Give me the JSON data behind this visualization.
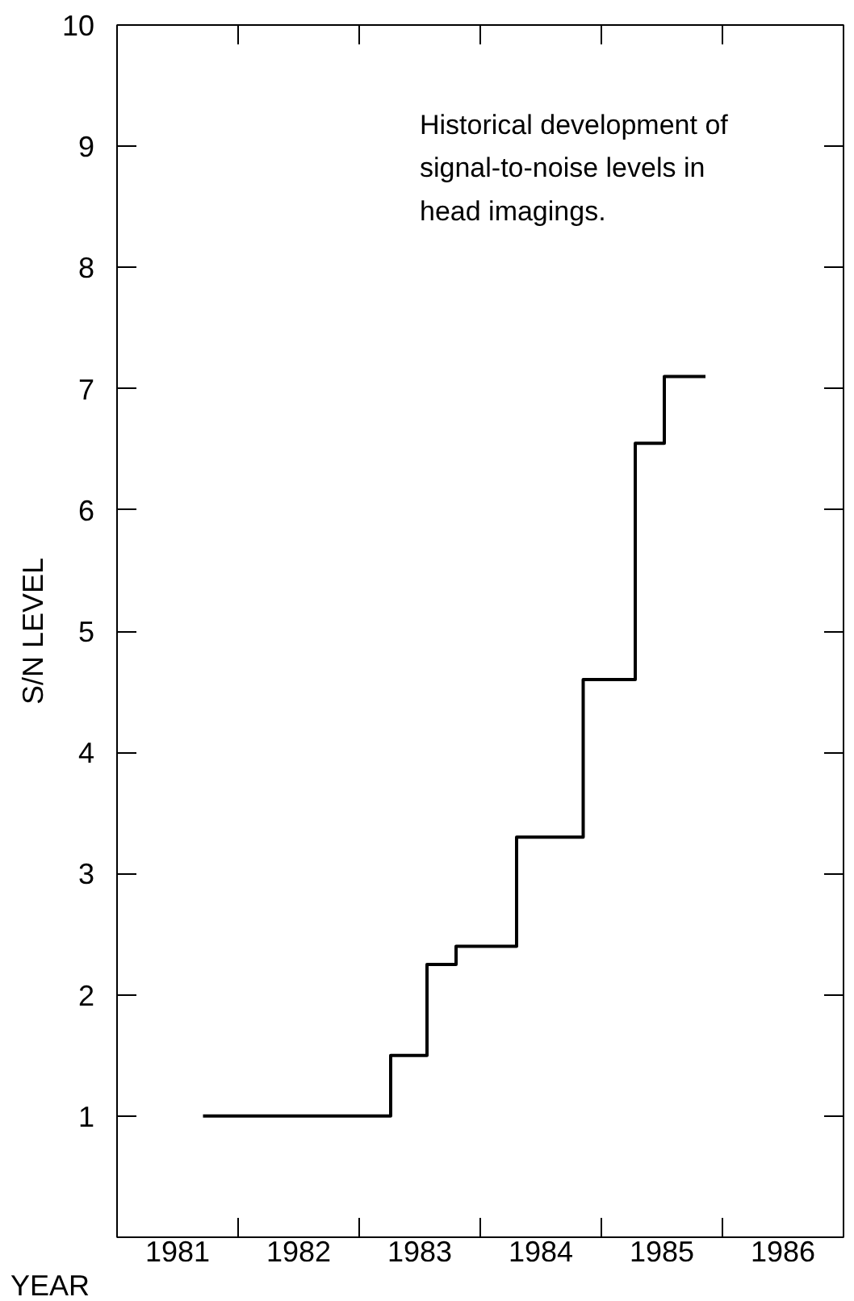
{
  "chart_data": {
    "type": "step",
    "xlabel": "YEAR",
    "ylabel": "S/N LEVEL",
    "annotations": [
      "Historical development of\nsignal-to-noise levels in\nhead imagings."
    ],
    "x": [
      1981.71,
      1983.26,
      1983.56,
      1983.8,
      1984.3,
      1984.85,
      1985.28,
      1985.52,
      1985.86
    ],
    "series": [
      {
        "color": "#000000",
        "values": [
          1,
          1.5,
          2.25,
          2.4,
          3.3,
          4.6,
          6.55,
          7.1,
          7.1
        ]
      }
    ],
    "xlim": [
      1981,
      1987
    ],
    "ylim": [
      0,
      10
    ],
    "xticks": [
      {
        "value": 1981.5,
        "label": "1981"
      },
      {
        "value": 1982.5,
        "label": "1982"
      },
      {
        "value": 1983.5,
        "label": "1983"
      },
      {
        "value": 1984.5,
        "label": "1984"
      },
      {
        "value": 1985.5,
        "label": "1985"
      },
      {
        "value": 1986.5,
        "label": "1986"
      },
      {
        "value": 1982,
        "label": null
      },
      {
        "value": 1983,
        "label": null
      },
      {
        "value": 1984,
        "label": null
      },
      {
        "value": 1985,
        "label": null
      },
      {
        "value": 1986,
        "label": null
      }
    ],
    "yticks": [
      1,
      2,
      3,
      4,
      5,
      6,
      7,
      8,
      9,
      10
    ],
    "grid": false,
    "line_style": "solid"
  }
}
